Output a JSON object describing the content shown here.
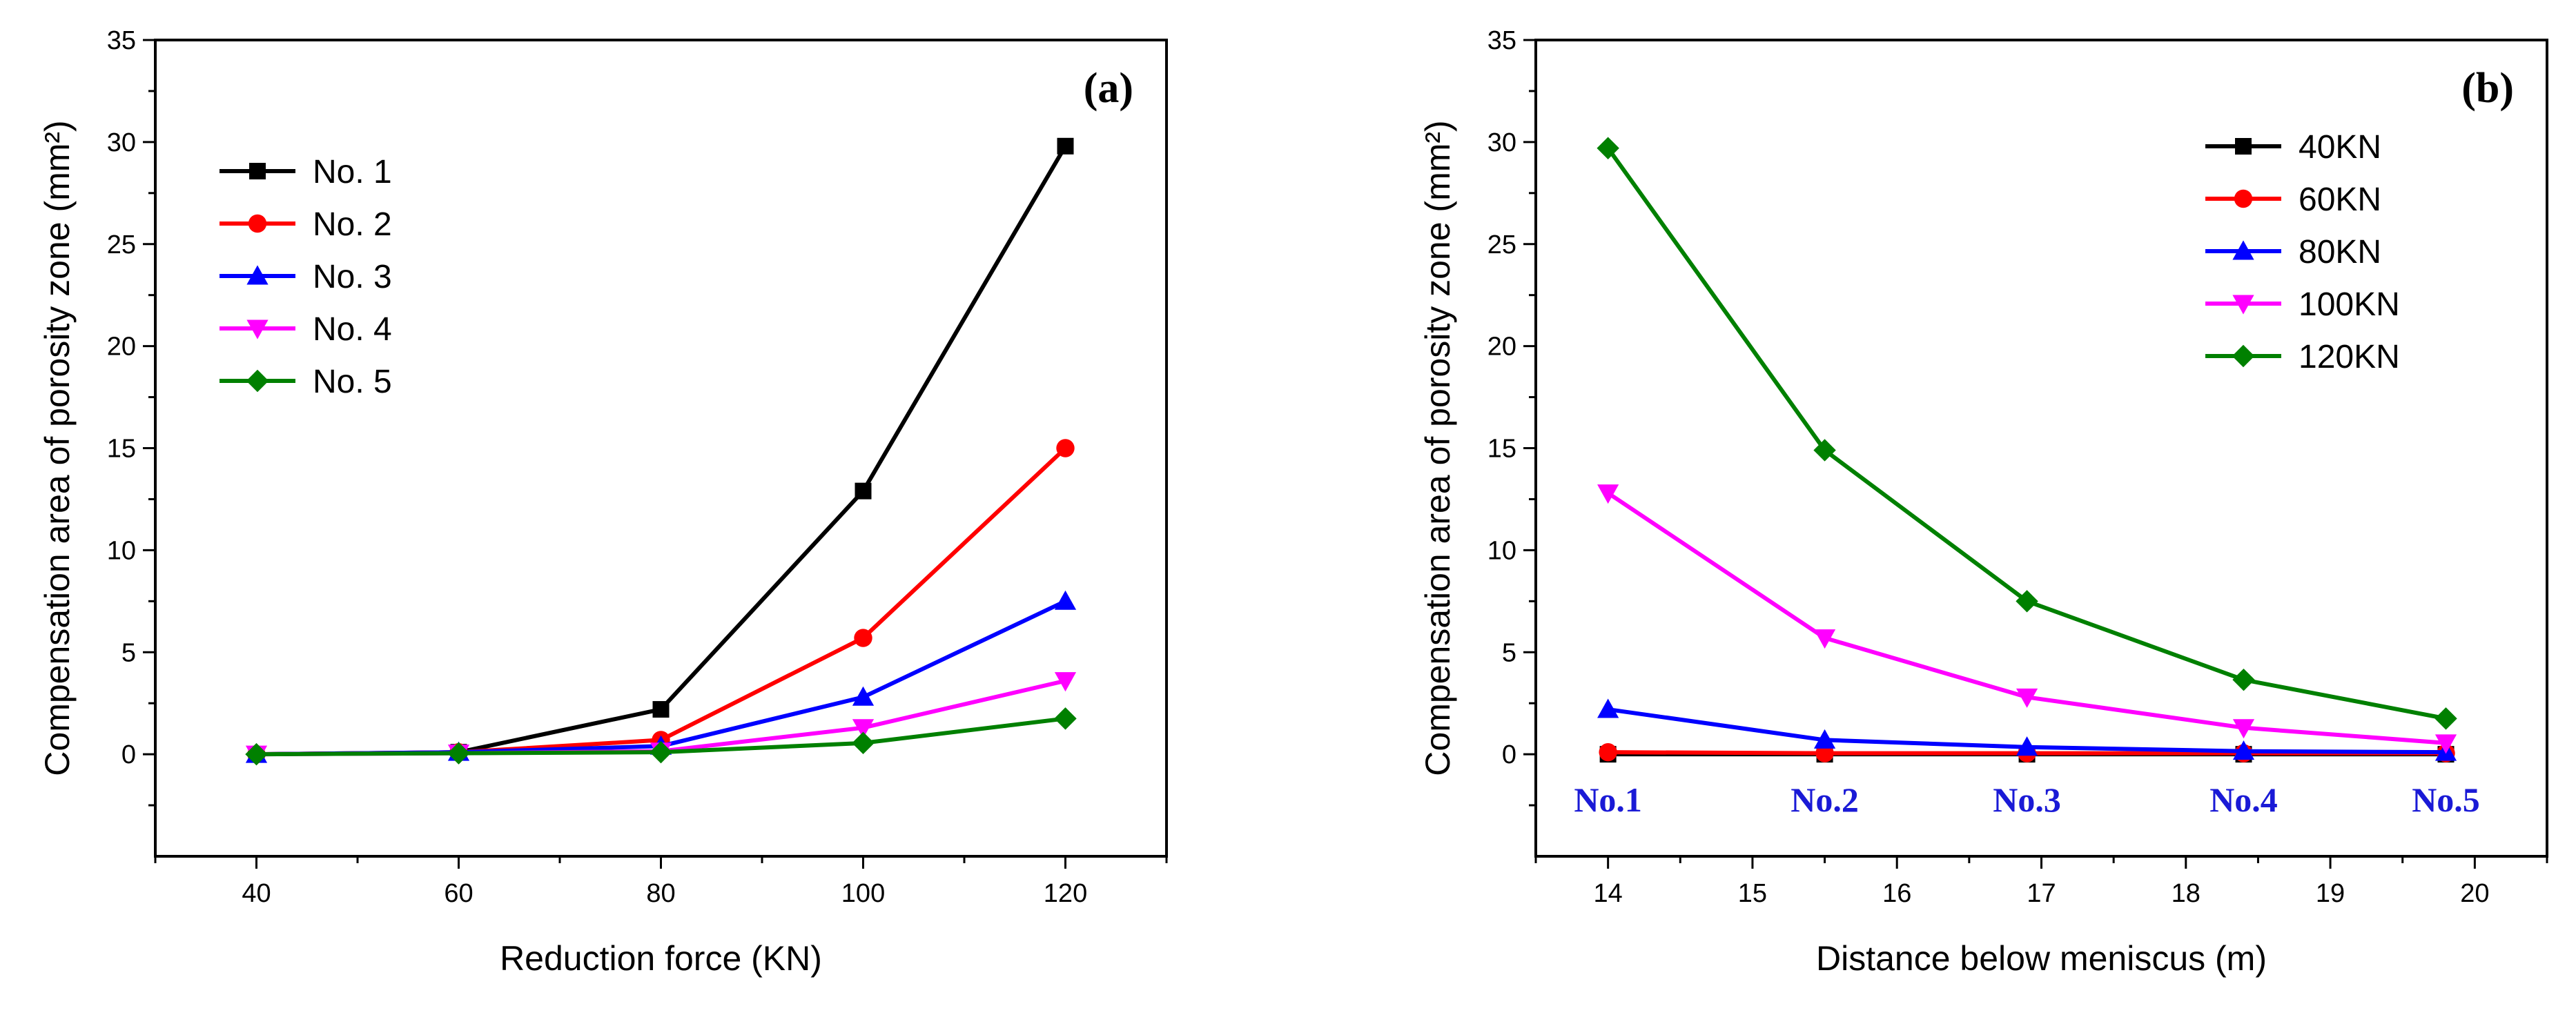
{
  "chart_data": [
    {
      "type": "line",
      "panel_label": "(a)",
      "xlabel": "Reduction force (KN)",
      "ylabel": "Compensation area  of porosity zone (mm²)",
      "xlim": [
        30,
        130
      ],
      "ylim": [
        -5,
        35
      ],
      "xticks": [
        40,
        60,
        80,
        100,
        120
      ],
      "yticks": [
        0,
        5,
        10,
        15,
        20,
        25,
        30,
        35
      ],
      "legend_position": "upper-left",
      "x": [
        40,
        60,
        80,
        100,
        120
      ],
      "series": [
        {
          "name": "No. 1",
          "color": "#000000",
          "marker": "square",
          "values": [
            0.0,
            0.1,
            2.2,
            12.9,
            29.8
          ]
        },
        {
          "name": "No. 2",
          "color": "#ff0000",
          "marker": "circle",
          "values": [
            0.0,
            0.1,
            0.7,
            5.7,
            15.0
          ]
        },
        {
          "name": "No. 3",
          "color": "#0000ff",
          "marker": "triangle-up",
          "values": [
            0.0,
            0.1,
            0.4,
            2.8,
            7.5
          ]
        },
        {
          "name": "No. 4",
          "color": "#ff00ff",
          "marker": "triangle-down",
          "values": [
            0.0,
            0.05,
            0.15,
            1.3,
            3.6
          ]
        },
        {
          "name": "No. 5",
          "color": "#008000",
          "marker": "diamond",
          "values": [
            0.0,
            0.05,
            0.1,
            0.55,
            1.75
          ]
        }
      ]
    },
    {
      "type": "line",
      "panel_label": "(b)",
      "xlabel": "Distance below meniscus (m)",
      "ylabel": "Compensation area  of porosity zone (mm²)",
      "xlim": [
        13.5,
        20.5
      ],
      "ylim": [
        -5,
        35
      ],
      "xticks": [
        14,
        15,
        16,
        17,
        18,
        19,
        20
      ],
      "yticks": [
        0,
        5,
        10,
        15,
        20,
        25,
        30,
        35
      ],
      "legend_position": "upper-right",
      "x": [
        14.0,
        15.5,
        16.9,
        18.4,
        19.8
      ],
      "category_labels": [
        "No.1",
        "No.2",
        "No.3",
        "No.4",
        "No.5"
      ],
      "series": [
        {
          "name": "40KN",
          "color": "#000000",
          "marker": "square",
          "values": [
            0.0,
            0.0,
            0.0,
            0.0,
            0.0
          ]
        },
        {
          "name": "60KN",
          "color": "#ff0000",
          "marker": "circle",
          "values": [
            0.1,
            0.05,
            0.05,
            0.05,
            0.05
          ]
        },
        {
          "name": "80KN",
          "color": "#0000ff",
          "marker": "triangle-up",
          "values": [
            2.2,
            0.7,
            0.35,
            0.15,
            0.1
          ]
        },
        {
          "name": "100KN",
          "color": "#ff00ff",
          "marker": "triangle-down",
          "values": [
            12.8,
            5.7,
            2.8,
            1.3,
            0.55
          ]
        },
        {
          "name": "120KN",
          "color": "#008000",
          "marker": "diamond",
          "values": [
            29.7,
            14.9,
            7.5,
            3.65,
            1.75
          ]
        }
      ]
    }
  ]
}
